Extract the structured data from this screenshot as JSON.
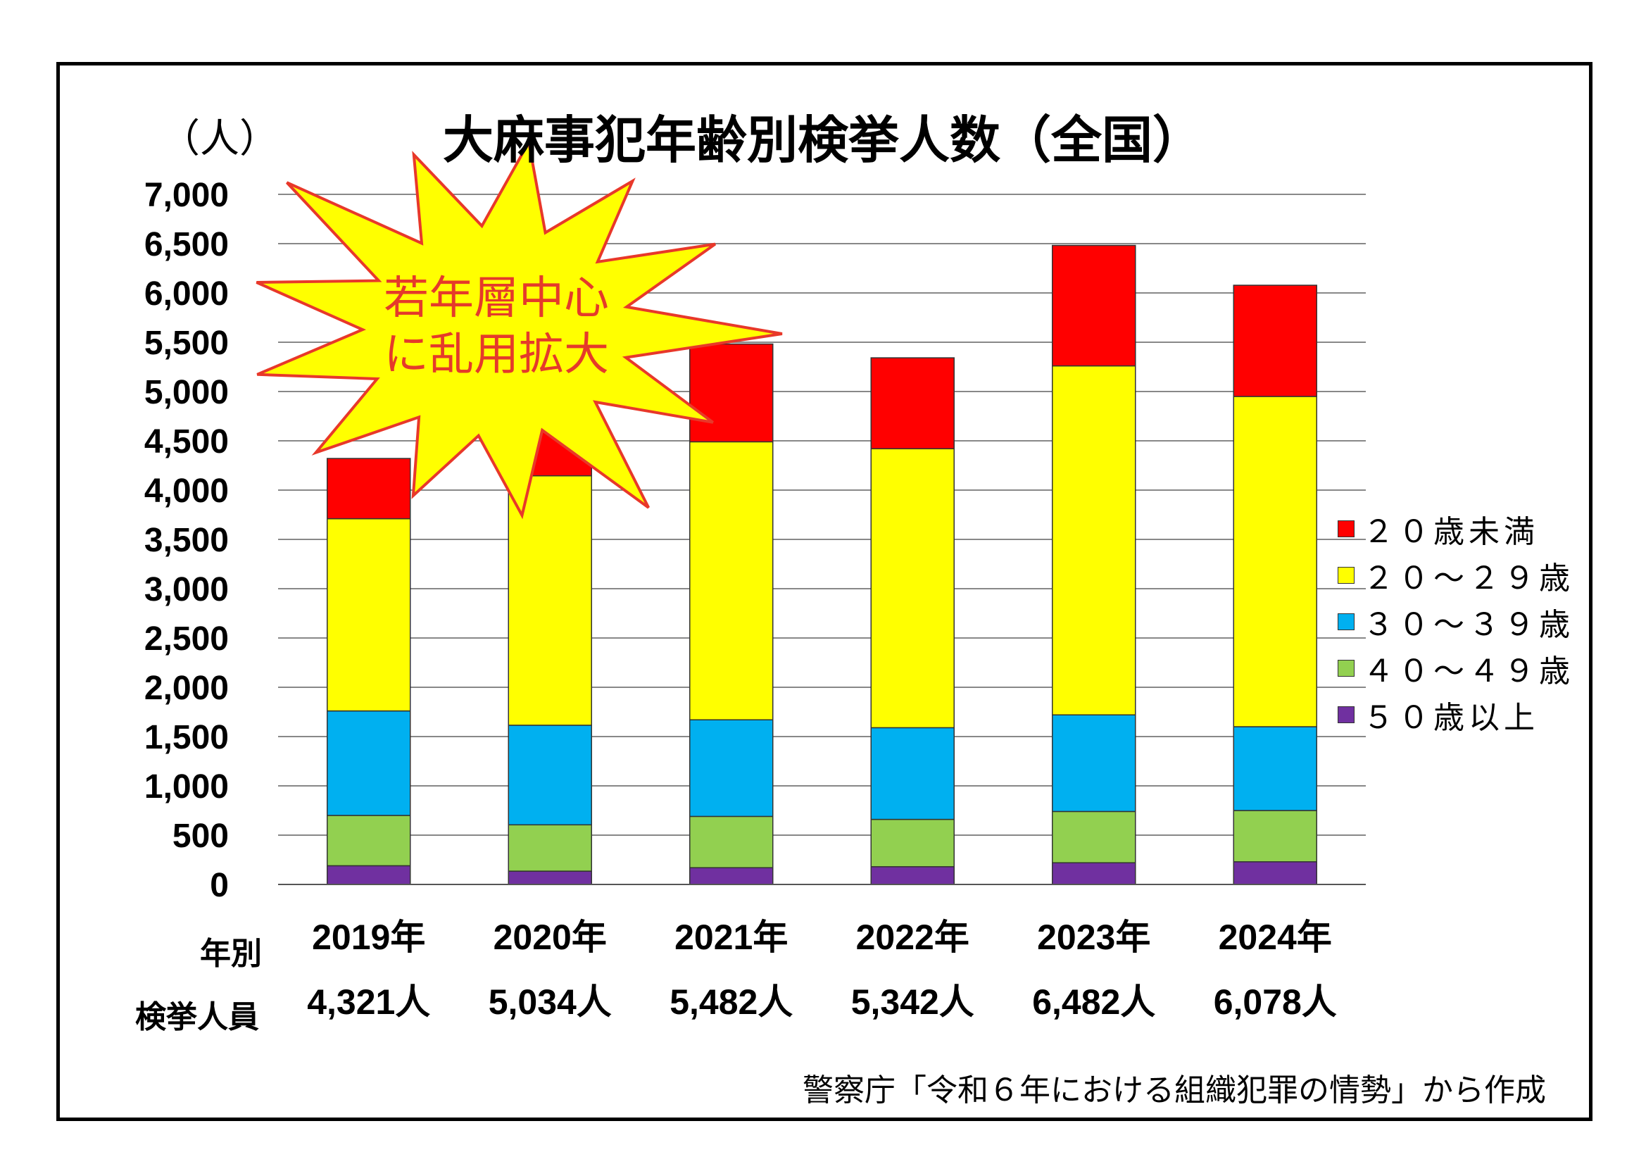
{
  "title": "大麻事犯年齢別検挙人数（全国）",
  "unit_label": "（人）",
  "callout": {
    "line1": "若年層中心",
    "line2": "に乱用拡大"
  },
  "row_labels": {
    "year": "年別",
    "arrests": "検挙人員"
  },
  "totals": [
    "4,321人",
    "5,034人",
    "5,482人",
    "5,342人",
    "6,482人",
    "6,078人"
  ],
  "source": "警察庁「令和６年における組織犯罪の情勢」から作成",
  "chart_data": {
    "type": "bar",
    "stacked": true,
    "categories": [
      "2019年",
      "2020年",
      "2021年",
      "2022年",
      "2023年",
      "2024年"
    ],
    "series": [
      {
        "name": "５０歳以上",
        "color": "#7030A0",
        "values": [
          190,
          135,
          170,
          180,
          220,
          230
        ]
      },
      {
        "name": "４０～４９歳",
        "color": "#92D050",
        "values": [
          510,
          470,
          520,
          480,
          520,
          520
        ]
      },
      {
        "name": "３０～３９歳",
        "color": "#00B0F0",
        "values": [
          1060,
          1010,
          980,
          930,
          980,
          850
        ]
      },
      {
        "name": "２０～２９歳",
        "color": "#FFFF00",
        "values": [
          1950,
          2530,
          2820,
          2830,
          3540,
          3350
        ]
      },
      {
        "name": "２０歳未満",
        "color": "#FF0000",
        "values": [
          611,
          889,
          992,
          922,
          1222,
          1128
        ]
      }
    ],
    "legend_order": [
      "２０歳未満",
      "２０～２９歳",
      "３０～３９歳",
      "４０～４９歳",
      "５０歳以上"
    ],
    "ylim": [
      0,
      7000
    ],
    "ytick_step": 500,
    "yticks": [
      "0",
      "500",
      "1,000",
      "1,500",
      "2,000",
      "2,500",
      "3,000",
      "3,500",
      "4,000",
      "4,500",
      "5,000",
      "5,500",
      "6,000",
      "6,500",
      "7,000"
    ],
    "grid": true,
    "legend_position": "right"
  }
}
